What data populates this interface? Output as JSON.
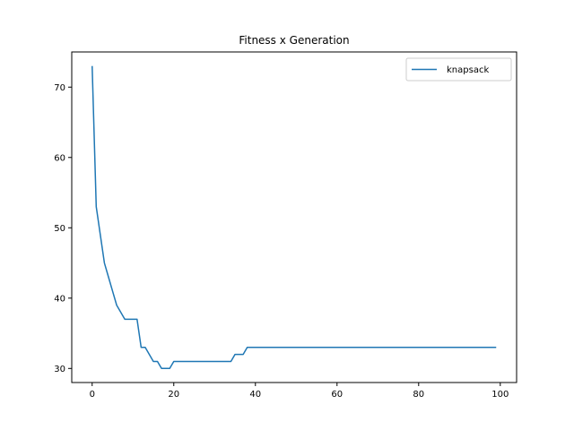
{
  "chart_data": {
    "type": "line",
    "title": "Fitness x Generation",
    "xlabel": "",
    "ylabel": "",
    "xlim": [
      -5,
      104
    ],
    "ylim": [
      28,
      75
    ],
    "xticks": [
      0,
      20,
      40,
      60,
      80,
      100
    ],
    "yticks": [
      30,
      40,
      50,
      60,
      70
    ],
    "grid": false,
    "legend": "top-right",
    "colors": {
      "series": "#1f77b4",
      "axes": "#000000",
      "background": "#ffffff"
    },
    "series": [
      {
        "name": "knapsack",
        "x": [
          0,
          1,
          2,
          3,
          4,
          5,
          6,
          7,
          8,
          9,
          10,
          11,
          12,
          13,
          14,
          15,
          16,
          17,
          18,
          19,
          20,
          21,
          22,
          23,
          24,
          25,
          26,
          27,
          28,
          29,
          30,
          31,
          32,
          33,
          34,
          35,
          36,
          37,
          38,
          39,
          40,
          45,
          50,
          55,
          60,
          65,
          70,
          75,
          80,
          85,
          90,
          95,
          99
        ],
        "y": [
          73,
          53,
          49,
          45,
          43,
          41,
          39,
          38,
          37,
          37,
          37,
          37,
          33,
          33,
          32,
          31,
          31,
          30,
          30,
          30,
          31,
          31,
          31,
          31,
          31,
          31,
          31,
          31,
          31,
          31,
          31,
          31,
          31,
          31,
          31,
          32,
          32,
          32,
          33,
          33,
          33,
          33,
          33,
          33,
          33,
          33,
          33,
          33,
          33,
          33,
          33,
          33,
          33
        ]
      }
    ]
  }
}
